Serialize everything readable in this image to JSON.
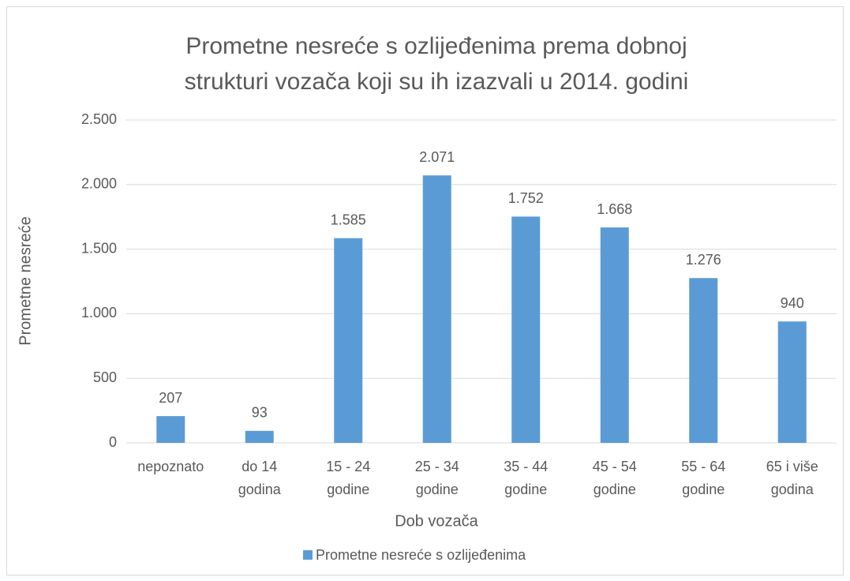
{
  "chart_data": {
    "type": "bar",
    "title": "Prometne nesreće s ozlijeđenima prema dobnoj\nstrukturi vozača koji su ih izazvali u 2014. godini",
    "x_label": "Dob vozača",
    "y_label": "Prometne nesreće",
    "categories": [
      "nepoznato",
      "do 14\ngodina",
      "15 - 24\ngodine",
      "25 - 34\ngodine",
      "35 - 44\ngodine",
      "45 - 54\ngodine",
      "55 - 64\ngodine",
      "65 i više\ngodina"
    ],
    "series": [
      {
        "name": "Prometne nesreće s ozlijeđenima",
        "color": "#5b9bd5",
        "values": [
          207,
          93,
          1585,
          2071,
          1752,
          1668,
          1276,
          940
        ],
        "value_labels": [
          "207",
          "93",
          "1.585",
          "2.071",
          "1.752",
          "1.668",
          "1.276",
          "940"
        ]
      }
    ],
    "ylim": [
      0,
      2500
    ],
    "yticks": [
      0,
      500,
      {
        "value": 1000,
        "label": "1.000"
      },
      {
        "value": 1500,
        "label": "1.500"
      },
      {
        "value": 2000,
        "label": "2.000"
      },
      {
        "value": 2500,
        "label": "2.500"
      }
    ],
    "grid": true,
    "legend": "bottom"
  }
}
